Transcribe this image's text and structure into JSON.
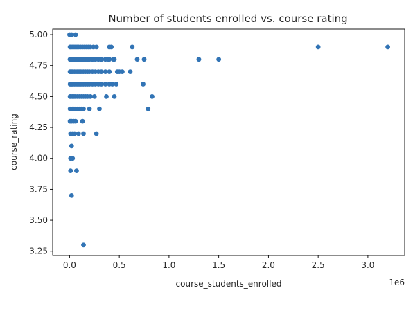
{
  "chart_data": {
    "type": "scatter",
    "title": "Number of students enrolled vs. course rating",
    "xlabel": "course_students_enrolled",
    "ylabel": "course_rating",
    "x_offset_label": "1e6",
    "xlim": [
      -170000,
      3370000
    ],
    "ylim": [
      3.215,
      5.045
    ],
    "x_ticks": [
      0,
      500000,
      1000000,
      1500000,
      2000000,
      2500000,
      3000000
    ],
    "x_tick_labels": [
      "0.0",
      "0.5",
      "1.0",
      "1.5",
      "2.0",
      "2.5",
      "3.0"
    ],
    "y_ticks": [
      3.25,
      3.5,
      3.75,
      4.0,
      4.25,
      4.5,
      4.75,
      5.0
    ],
    "y_tick_labels": [
      "3.25",
      "3.50",
      "3.75",
      "4.00",
      "4.25",
      "4.50",
      "4.75",
      "5.00"
    ],
    "grid": false,
    "legend": "none",
    "marker_color": "#3274b5",
    "x": [
      0,
      20000,
      60000,
      5000,
      15000,
      30000,
      45000,
      60000,
      75000,
      90000,
      110000,
      130000,
      150000,
      170000,
      190000,
      210000,
      240000,
      270000,
      400000,
      420000,
      630000,
      5000,
      15000,
      25000,
      35000,
      50000,
      65000,
      80000,
      95000,
      110000,
      125000,
      140000,
      160000,
      180000,
      200000,
      230000,
      260000,
      290000,
      320000,
      360000,
      390000,
      440000,
      1300000,
      1500000,
      2500000,
      3200000,
      5000,
      15000,
      25000,
      35000,
      50000,
      65000,
      80000,
      95000,
      110000,
      125000,
      140000,
      160000,
      180000,
      200000,
      230000,
      260000,
      290000,
      320000,
      360000,
      400000,
      450000,
      680000,
      750000,
      5000,
      15000,
      25000,
      35000,
      50000,
      65000,
      80000,
      95000,
      110000,
      125000,
      140000,
      160000,
      180000,
      200000,
      230000,
      260000,
      290000,
      320000,
      360000,
      400000,
      480000,
      500000,
      530000,
      610000,
      5000,
      15000,
      25000,
      35000,
      50000,
      65000,
      80000,
      95000,
      110000,
      125000,
      140000,
      160000,
      180000,
      200000,
      230000,
      260000,
      290000,
      320000,
      360000,
      400000,
      430000,
      470000,
      740000,
      5000,
      15000,
      30000,
      45000,
      60000,
      80000,
      100000,
      120000,
      140000,
      160000,
      180000,
      210000,
      250000,
      370000,
      450000,
      830000,
      5000,
      15000,
      30000,
      45000,
      60000,
      80000,
      100000,
      120000,
      140000,
      200000,
      300000,
      790000,
      5000,
      20000,
      40000,
      60000,
      130000,
      10000,
      30000,
      50000,
      90000,
      140000,
      270000,
      20000,
      10000,
      30000,
      10000,
      70000,
      20000,
      140000
    ],
    "y": [
      5.0,
      5.0,
      5.0,
      4.9,
      4.9,
      4.9,
      4.9,
      4.9,
      4.9,
      4.9,
      4.9,
      4.9,
      4.9,
      4.9,
      4.9,
      4.9,
      4.9,
      4.9,
      4.9,
      4.9,
      4.9,
      4.8,
      4.8,
      4.8,
      4.8,
      4.8,
      4.8,
      4.8,
      4.8,
      4.8,
      4.8,
      4.8,
      4.8,
      4.8,
      4.8,
      4.8,
      4.8,
      4.8,
      4.8,
      4.8,
      4.8,
      4.8,
      4.8,
      4.8,
      4.9,
      4.9,
      4.8,
      4.8,
      4.8,
      4.8,
      4.8,
      4.8,
      4.8,
      4.8,
      4.8,
      4.8,
      4.8,
      4.8,
      4.8,
      4.8,
      4.8,
      4.8,
      4.8,
      4.8,
      4.8,
      4.8,
      4.8,
      4.8,
      4.8,
      4.7,
      4.7,
      4.7,
      4.7,
      4.7,
      4.7,
      4.7,
      4.7,
      4.7,
      4.7,
      4.7,
      4.7,
      4.7,
      4.7,
      4.7,
      4.7,
      4.7,
      4.7,
      4.7,
      4.7,
      4.7,
      4.7,
      4.7,
      4.7,
      4.6,
      4.6,
      4.6,
      4.6,
      4.6,
      4.6,
      4.6,
      4.6,
      4.6,
      4.6,
      4.6,
      4.6,
      4.6,
      4.6,
      4.6,
      4.6,
      4.6,
      4.6,
      4.6,
      4.6,
      4.6,
      4.6,
      4.6,
      4.5,
      4.5,
      4.5,
      4.5,
      4.5,
      4.5,
      4.5,
      4.5,
      4.5,
      4.5,
      4.5,
      4.5,
      4.5,
      4.5,
      4.5,
      4.5,
      4.4,
      4.4,
      4.4,
      4.4,
      4.4,
      4.4,
      4.4,
      4.4,
      4.4,
      4.4,
      4.4,
      4.4,
      4.3,
      4.3,
      4.3,
      4.3,
      4.3,
      4.2,
      4.2,
      4.2,
      4.2,
      4.2,
      4.2,
      4.1,
      4.0,
      4.0,
      3.9,
      3.9,
      3.7,
      3.3
    ]
  }
}
